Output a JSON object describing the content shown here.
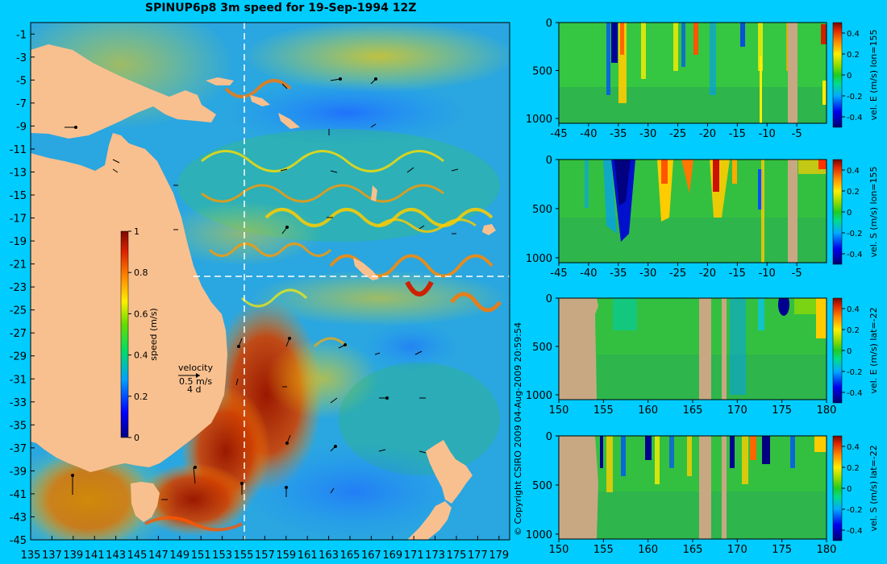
{
  "title": "SPINUP6p8 3m speed for 19-Sep-1994 12Z",
  "copyright": "© Copyright CSIRO 2009  04-Aug-2009 20:59:54",
  "colors": {
    "background": "#00ccff",
    "land": "#f9c08f",
    "section_land": "#c8a882",
    "section_line": "#ffffff"
  },
  "chart_data": [
    {
      "type": "heatmap",
      "title": "SPINUP6p8 3m speed for 19-Sep-1994 12Z",
      "x_ticks": [
        "135",
        "137",
        "139",
        "141",
        "143",
        "145",
        "147",
        "149",
        "151",
        "153",
        "155",
        "157",
        "159",
        "161",
        "163",
        "165",
        "167",
        "169",
        "171",
        "173",
        "175",
        "177",
        "179"
      ],
      "y_ticks": [
        "-1",
        "-3",
        "-5",
        "-7",
        "-9",
        "-11",
        "-13",
        "-15",
        "-17",
        "-19",
        "-21",
        "-23",
        "-25",
        "-27",
        "-29",
        "-31",
        "-33",
        "-35",
        "-37",
        "-39",
        "-41",
        "-43",
        "-45"
      ],
      "xlim": [
        135,
        180
      ],
      "ylim": [
        -45,
        0
      ],
      "section_lines": {
        "lon": 155,
        "lat": -22
      },
      "colorbar": {
        "label": "speed (m/s)",
        "ticks": [
          "1",
          "0.8",
          "0.6",
          "0.4",
          "0.2",
          "0"
        ],
        "range": [
          0,
          1
        ]
      },
      "velocity_key": {
        "label": "velocity",
        "scale": "0.5 m/s",
        "interval": "4 d"
      }
    },
    {
      "type": "heatmap",
      "x_ticks": [
        "-45",
        "-40",
        "-35",
        "-30",
        "-25",
        "-20",
        "-15",
        "-10",
        "-5"
      ],
      "y_ticks": [
        "0",
        "500",
        "1000"
      ],
      "xlim": [
        -45,
        0
      ],
      "ylim": [
        1050,
        0
      ],
      "colorbar": {
        "label": "vel. E (m/s) lon=155",
        "ticks": [
          "0.4",
          "0.2",
          "0",
          "-0.2",
          "-0.4"
        ],
        "range": [
          -0.5,
          0.5
        ]
      }
    },
    {
      "type": "heatmap",
      "x_ticks": [
        "-45",
        "-40",
        "-35",
        "-30",
        "-25",
        "-20",
        "-15",
        "-10",
        "-5"
      ],
      "y_ticks": [
        "0",
        "500",
        "1000"
      ],
      "xlim": [
        -45,
        0
      ],
      "ylim": [
        1050,
        0
      ],
      "colorbar": {
        "label": "vel. S (m/s) lon=155",
        "ticks": [
          "0.4",
          "0.2",
          "0",
          "-0.2",
          "-0.4"
        ],
        "range": [
          -0.5,
          0.5
        ]
      }
    },
    {
      "type": "heatmap",
      "x_ticks": [
        "150",
        "155",
        "160",
        "165",
        "170",
        "175",
        "180"
      ],
      "y_ticks": [
        "0",
        "500",
        "1000"
      ],
      "xlim": [
        150,
        180
      ],
      "ylim": [
        1050,
        0
      ],
      "colorbar": {
        "label": "vel. E (m/s) lat=-22",
        "ticks": [
          "0.4",
          "0.2",
          "0",
          "-0.2",
          "-0.4"
        ],
        "range": [
          -0.5,
          0.5
        ]
      }
    },
    {
      "type": "heatmap",
      "x_ticks": [
        "150",
        "155",
        "160",
        "165",
        "170",
        "175",
        "180"
      ],
      "y_ticks": [
        "0",
        "500",
        "1000"
      ],
      "xlim": [
        150,
        180
      ],
      "ylim": [
        1050,
        0
      ],
      "colorbar": {
        "label": "vel. S (m/s) lat=-22",
        "ticks": [
          "0.4",
          "0.2",
          "0",
          "-0.2",
          "-0.4"
        ],
        "range": [
          -0.5,
          0.5
        ]
      }
    }
  ]
}
